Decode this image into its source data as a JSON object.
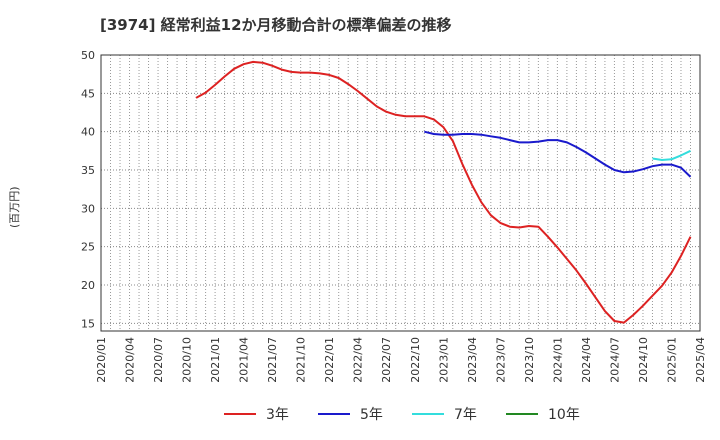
{
  "chart_data": {
    "type": "line",
    "title": "[3974]  経常利益12か月移動合計の標準偏差の推移",
    "ylabel": "(百万円)",
    "xlabel": "",
    "ylim": [
      14,
      50
    ],
    "yticks": [
      15,
      20,
      25,
      30,
      35,
      40,
      45,
      50
    ],
    "xticks": [
      "2020/01",
      "2020/04",
      "2020/07",
      "2020/10",
      "2021/01",
      "2021/04",
      "2021/07",
      "2021/10",
      "2022/01",
      "2022/04",
      "2022/07",
      "2022/10",
      "2023/01",
      "2023/04",
      "2023/07",
      "2023/10",
      "2024/01",
      "2024/04",
      "2024/07",
      "2024/10",
      "2025/01",
      "2025/04"
    ],
    "grid": true,
    "legend_position": "bottom",
    "series": [
      {
        "name": "3年",
        "color": "#dd2222",
        "points": [
          [
            10,
            44.4
          ],
          [
            11,
            45.1
          ],
          [
            12,
            46.1
          ],
          [
            13,
            47.2
          ],
          [
            14,
            48.2
          ],
          [
            15,
            48.8
          ],
          [
            16,
            49.1
          ],
          [
            17,
            49.0
          ],
          [
            18,
            48.6
          ],
          [
            19,
            48.1
          ],
          [
            20,
            47.8
          ],
          [
            21,
            47.7
          ],
          [
            22,
            47.7
          ],
          [
            23,
            47.6
          ],
          [
            24,
            47.4
          ],
          [
            25,
            47.0
          ],
          [
            26,
            46.2
          ],
          [
            27,
            45.3
          ],
          [
            28,
            44.3
          ],
          [
            29,
            43.3
          ],
          [
            30,
            42.6
          ],
          [
            31,
            42.2
          ],
          [
            32,
            42.0
          ],
          [
            33,
            42.0
          ],
          [
            34,
            42.0
          ],
          [
            35,
            41.6
          ],
          [
            36,
            40.6
          ],
          [
            37,
            38.8
          ],
          [
            38,
            35.8
          ],
          [
            39,
            33.1
          ],
          [
            40,
            30.8
          ],
          [
            41,
            29.1
          ],
          [
            42,
            28.1
          ],
          [
            43,
            27.6
          ],
          [
            44,
            27.5
          ],
          [
            45,
            27.7
          ],
          [
            46,
            27.6
          ],
          [
            47,
            26.3
          ],
          [
            48,
            24.9
          ],
          [
            49,
            23.4
          ],
          [
            50,
            21.9
          ],
          [
            51,
            20.2
          ],
          [
            52,
            18.4
          ],
          [
            53,
            16.6
          ],
          [
            54,
            15.3
          ],
          [
            55,
            15.1
          ],
          [
            56,
            16.1
          ],
          [
            57,
            17.3
          ],
          [
            58,
            18.6
          ],
          [
            59,
            19.9
          ],
          [
            60,
            21.6
          ],
          [
            61,
            23.8
          ],
          [
            62,
            26.3
          ]
        ]
      },
      {
        "name": "5年",
        "color": "#1a1acc",
        "points": [
          [
            34,
            40.0
          ],
          [
            35,
            39.7
          ],
          [
            36,
            39.6
          ],
          [
            37,
            39.6
          ],
          [
            38,
            39.7
          ],
          [
            39,
            39.7
          ],
          [
            40,
            39.6
          ],
          [
            41,
            39.4
          ],
          [
            42,
            39.2
          ],
          [
            43,
            38.9
          ],
          [
            44,
            38.6
          ],
          [
            45,
            38.6
          ],
          [
            46,
            38.7
          ],
          [
            47,
            38.9
          ],
          [
            48,
            38.9
          ],
          [
            49,
            38.6
          ],
          [
            50,
            38.0
          ],
          [
            51,
            37.3
          ],
          [
            52,
            36.5
          ],
          [
            53,
            35.7
          ],
          [
            54,
            35.0
          ],
          [
            55,
            34.7
          ],
          [
            56,
            34.8
          ],
          [
            57,
            35.1
          ],
          [
            58,
            35.5
          ],
          [
            59,
            35.7
          ],
          [
            60,
            35.7
          ],
          [
            61,
            35.3
          ],
          [
            62,
            34.1
          ]
        ]
      },
      {
        "name": "7年",
        "color": "#33dddd",
        "points": [
          [
            58,
            36.5
          ],
          [
            59,
            36.3
          ],
          [
            60,
            36.4
          ],
          [
            61,
            36.9
          ],
          [
            62,
            37.5
          ]
        ]
      },
      {
        "name": "10年",
        "color": "#228822",
        "points": []
      }
    ]
  }
}
